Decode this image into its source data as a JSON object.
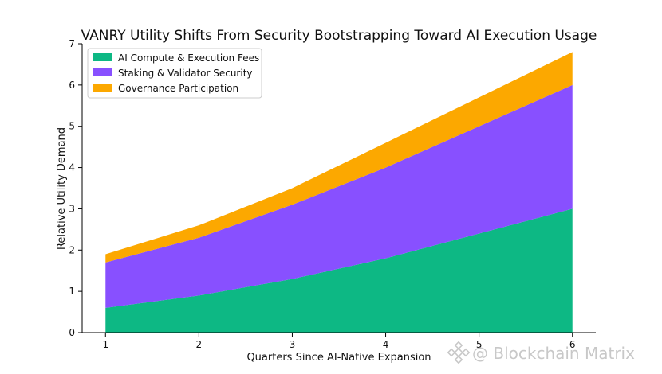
{
  "chart_data": {
    "type": "area",
    "stacked": true,
    "title": "VANRY Utility Shifts From Security Bootstrapping Toward AI Execution Usage",
    "xlabel": "Quarters Since AI-Native Expansion",
    "ylabel": "Relative Utility Demand",
    "x": [
      1,
      2,
      3,
      4,
      5,
      6
    ],
    "xticks": [
      "1",
      "2",
      "3",
      "4",
      "5",
      "6"
    ],
    "xlim": [
      0.75,
      6.25
    ],
    "ylim": [
      0,
      7
    ],
    "yticks": [
      "0",
      "1",
      "2",
      "3",
      "4",
      "5",
      "6",
      "7"
    ],
    "grid": false,
    "legend_position": "top-left",
    "series": [
      {
        "name": "AI Compute & Execution Fees",
        "color": "#0db884",
        "values": [
          0.6,
          0.9,
          1.3,
          1.8,
          2.4,
          3.0
        ]
      },
      {
        "name": "Staking & Validator Security",
        "color": "#8850ff",
        "values": [
          1.1,
          1.4,
          1.8,
          2.2,
          2.6,
          3.0
        ]
      },
      {
        "name": "Governance Participation",
        "color": "#fca800",
        "values": [
          0.2,
          0.3,
          0.4,
          0.6,
          0.7,
          0.8
        ]
      }
    ]
  },
  "watermark": {
    "text": "@ Blockchain Matrix",
    "icon": "binance-logo-icon"
  }
}
